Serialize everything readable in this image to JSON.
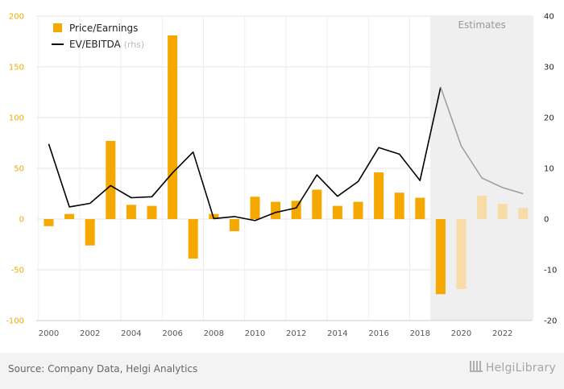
{
  "chart_data": {
    "type": "bar",
    "x": [
      2000,
      2001,
      2002,
      2003,
      2004,
      2005,
      2006,
      2007,
      2008,
      2009,
      2010,
      2011,
      2012,
      2013,
      2014,
      2015,
      2016,
      2017,
      2018,
      2019,
      2020,
      2021,
      2022,
      2023
    ],
    "x_tick_labels": [
      "2000",
      "2002",
      "2004",
      "2006",
      "2008",
      "2010",
      "2012",
      "2014",
      "2016",
      "2018",
      "2020",
      "2022"
    ],
    "series": [
      {
        "name": "Price/Earnings",
        "kind": "bar",
        "axis": "left",
        "color": "#f5a800",
        "estimate_color": "#f7dca8",
        "values": [
          -7,
          5,
          -26,
          77,
          14,
          13,
          181,
          -39,
          5,
          -12,
          22,
          17,
          18,
          29,
          13,
          17,
          46,
          26,
          21,
          -74,
          -69,
          23,
          15,
          11
        ]
      },
      {
        "name": "EV/EBITDA",
        "name_suffix": "(rhs)",
        "kind": "line",
        "axis": "right",
        "color": "#000000",
        "estimate_color": "#a0a0a0",
        "values": [
          14.8,
          2.4,
          3.1,
          6.6,
          4.2,
          4.4,
          9.1,
          13.2,
          0.1,
          0.5,
          -0.3,
          1.3,
          2.2,
          8.7,
          4.5,
          7.4,
          14.1,
          12.8,
          7.6,
          26.0,
          14.4,
          8.1,
          6.2,
          5.0
        ]
      }
    ],
    "estimates": {
      "label": "Estimates",
      "from": 2019,
      "to": 2023
    },
    "y_left": {
      "min": -100,
      "max": 200,
      "ticks": [
        "-100",
        "-50",
        "0",
        "50",
        "100",
        "150",
        "200"
      ]
    },
    "y_right": {
      "min": -20,
      "max": 40,
      "ticks": [
        "-20",
        "-10",
        "0",
        "10",
        "20",
        "30",
        "40"
      ]
    },
    "grid": true,
    "legend_position": "top-left",
    "title": "",
    "xlabel": "",
    "ylabel": ""
  },
  "footer": {
    "source": "Source: Company Data, Helgi Analytics",
    "logo": "HelgiLibrary"
  }
}
